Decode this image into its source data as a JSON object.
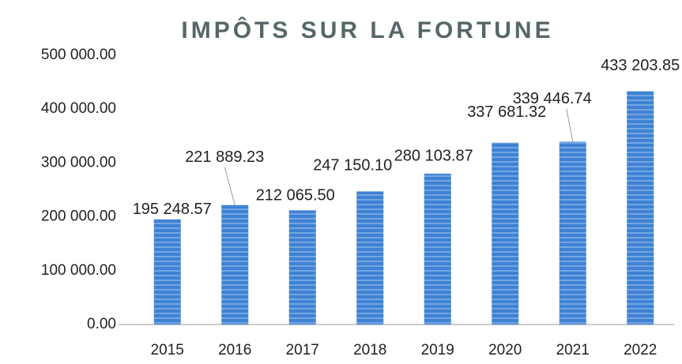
{
  "chart_data": {
    "type": "bar",
    "title": "IMPÔTS SUR LA FORTUNE",
    "categories": [
      "2015",
      "2016",
      "2017",
      "2018",
      "2019",
      "2020",
      "2021",
      "2022"
    ],
    "values": [
      195248.57,
      221889.23,
      212065.5,
      247150.1,
      280103.87,
      337681.32,
      339446.74,
      433203.85
    ],
    "value_labels": [
      "195 248.57",
      "221 889.23",
      "212 065.50",
      "247 150.10",
      "280 103.87",
      "337 681.32",
      "339 446.74",
      "433 203.85"
    ],
    "color": "#3f82d4",
    "ylim": [
      0,
      500000
    ],
    "yticks": [
      {
        "value": 0,
        "label": "0.00"
      },
      {
        "value": 100000,
        "label": "100 000.00"
      },
      {
        "value": 200000,
        "label": "200 000.00"
      },
      {
        "value": 300000,
        "label": "300 000.00"
      },
      {
        "value": 400000,
        "label": "400 000.00"
      },
      {
        "value": 500000,
        "label": "500 000.00"
      }
    ],
    "grid": false
  }
}
